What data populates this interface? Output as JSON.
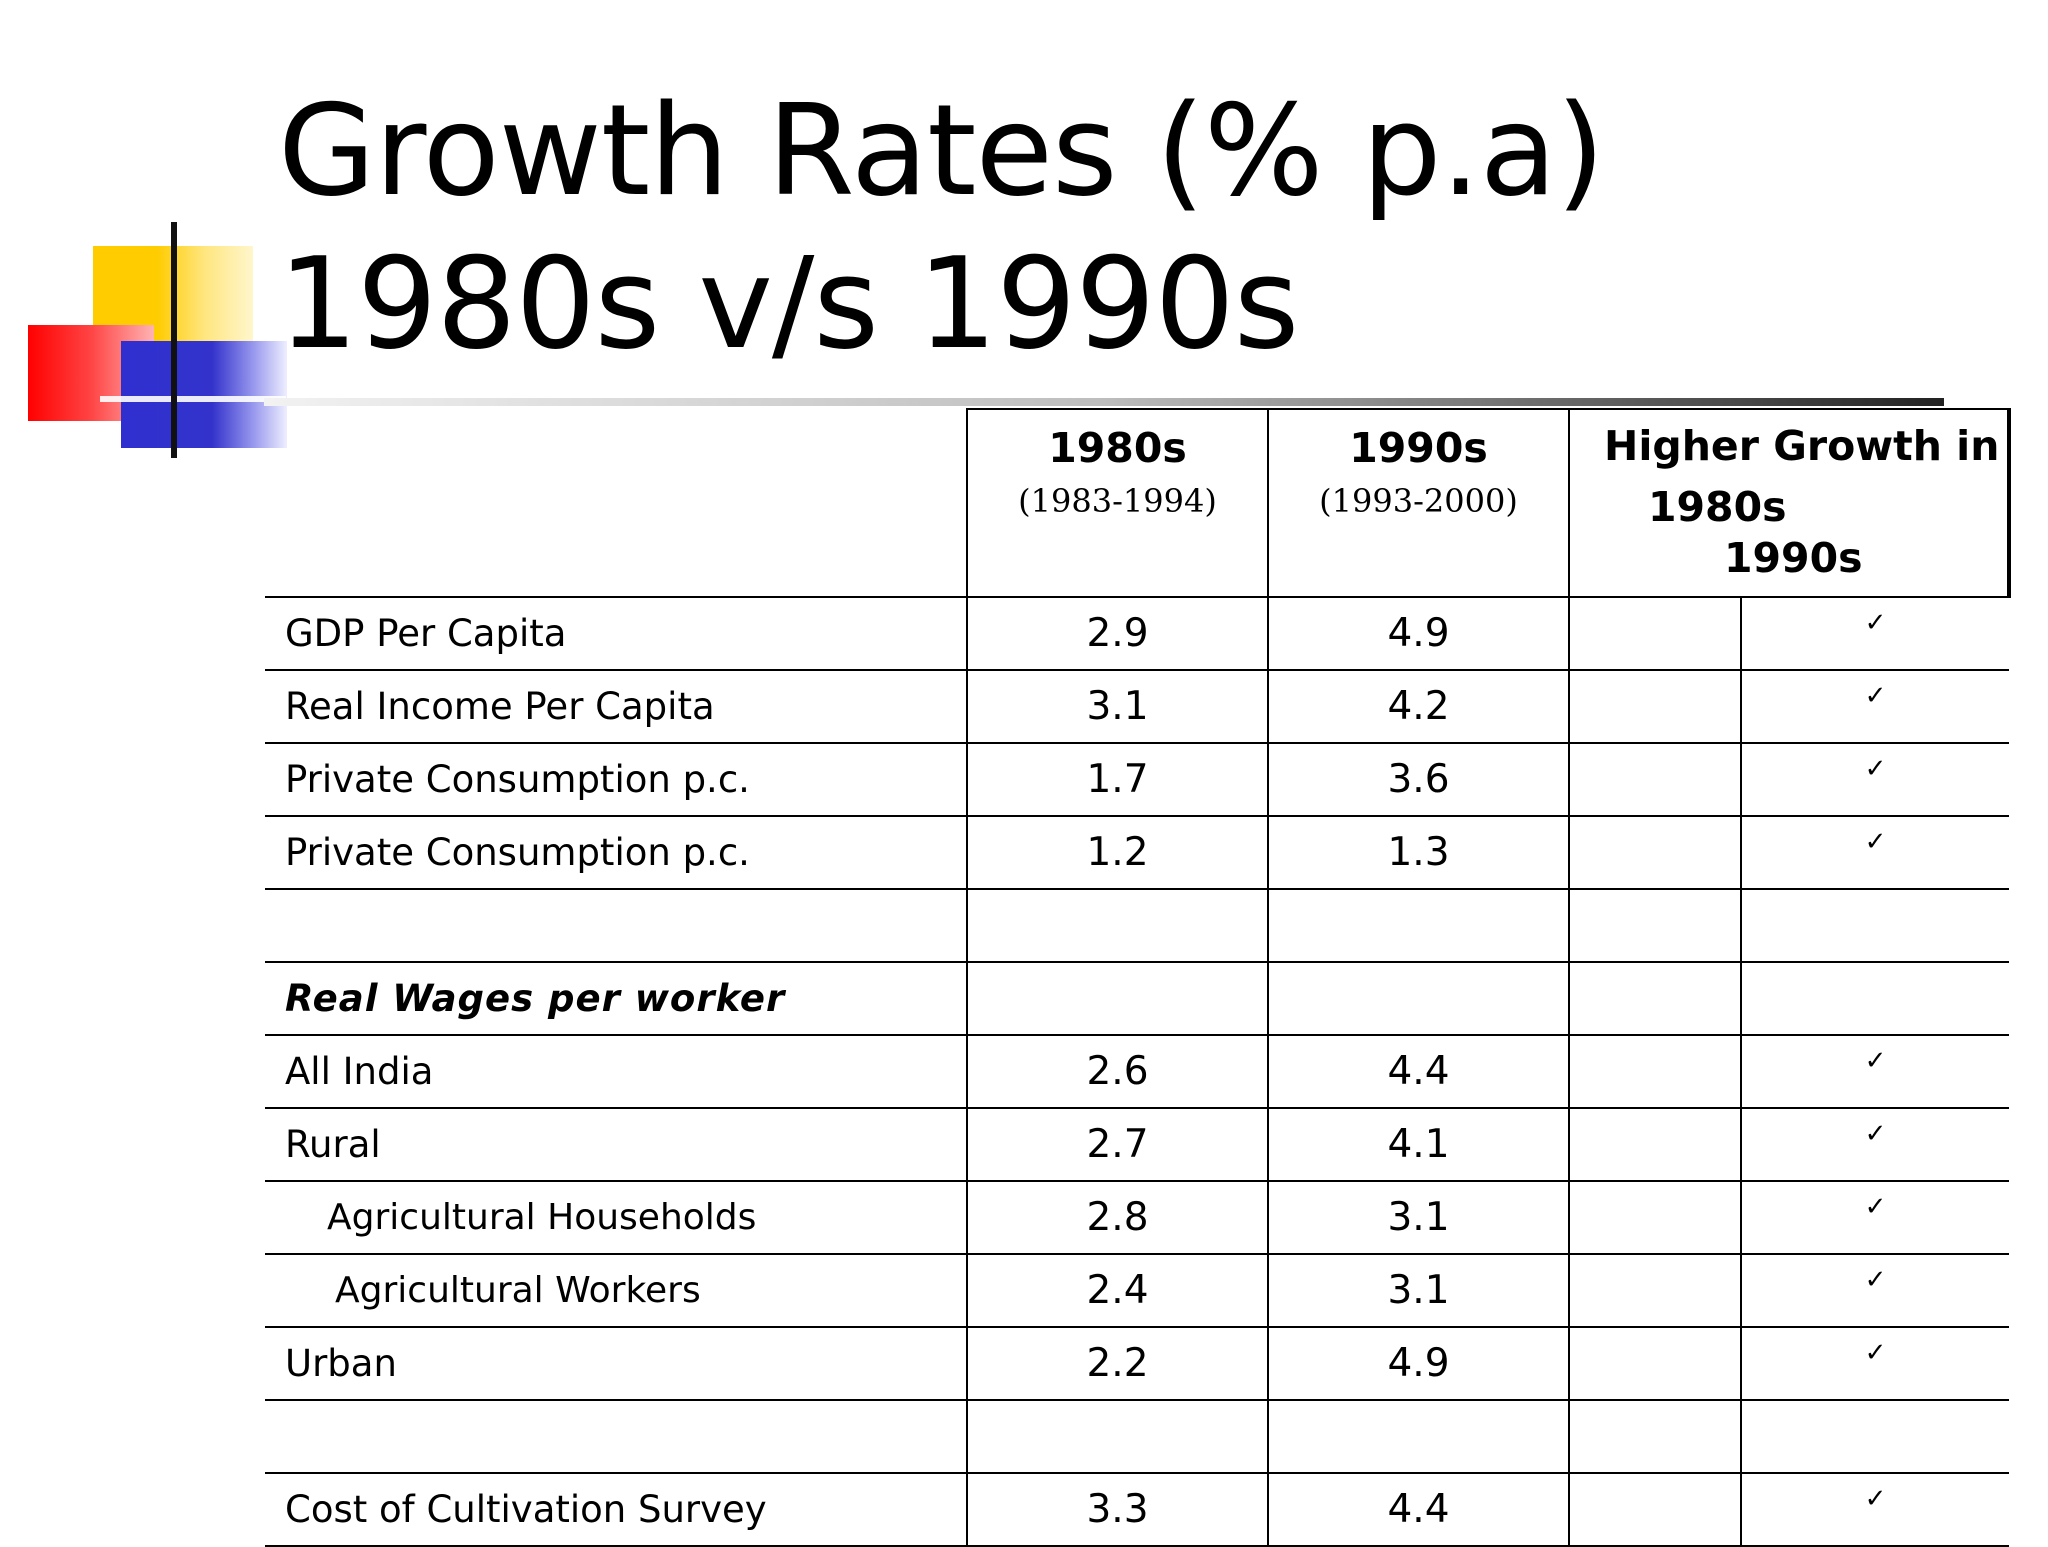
{
  "title": "Growth Rates (% p.a) 1980s v/s 1990s",
  "header": {
    "col1_year": "1980s",
    "col1_range": "(1983-1994)",
    "col2_year": "1990s",
    "col2_range": "(1993-2000)",
    "col3_title": "Higher Growth in",
    "col3_sub1": "1980s",
    "col3_sub2": "1990s"
  },
  "rows": [
    {
      "label": "GDP Per Capita",
      "v1980": "2.9",
      "v1990": "4.9",
      "h1980": "",
      "h1990": "✓"
    },
    {
      "label": "Real Income Per Capita",
      "v1980": "3.1",
      "v1990": "4.2",
      "h1980": "",
      "h1990": "✓"
    },
    {
      "label": "Private Consumption p.c.",
      "v1980": "1.7",
      "v1990": "3.6",
      "h1980": "",
      "h1990": "✓"
    },
    {
      "label": "Private Consumption p.c.",
      "v1980": "1.2",
      "v1990": "1.3",
      "h1980": "",
      "h1990": "✓"
    },
    {
      "label": "",
      "v1980": "",
      "v1990": "",
      "h1980": "",
      "h1990": ""
    },
    {
      "label": "Real Wages per worker",
      "v1980": "",
      "v1990": "",
      "h1980": "",
      "h1990": ""
    },
    {
      "label": "All India",
      "v1980": "2.6",
      "v1990": "4.4",
      "h1980": "",
      "h1990": "✓"
    },
    {
      "label": "Rural",
      "v1980": "2.7",
      "v1990": "4.1",
      "h1980": "",
      "h1990": "✓"
    },
    {
      "label": "Agricultural Households",
      "v1980": "2.8",
      "v1990": "3.1",
      "h1980": "",
      "h1990": "✓"
    },
    {
      "label": "Agricultural Workers",
      "v1980": "2.4",
      "v1990": "3.1",
      "h1980": "",
      "h1990": "✓"
    },
    {
      "label": "Urban",
      "v1980": "2.2",
      "v1990": "4.9",
      "h1980": "",
      "h1990": "✓"
    },
    {
      "label": "",
      "v1980": "",
      "v1990": "",
      "h1980": "",
      "h1990": ""
    },
    {
      "label": "Cost of Cultivation Survey",
      "v1980": "3.3",
      "v1990": "4.4",
      "h1980": "",
      "h1990": "✓"
    }
  ]
}
